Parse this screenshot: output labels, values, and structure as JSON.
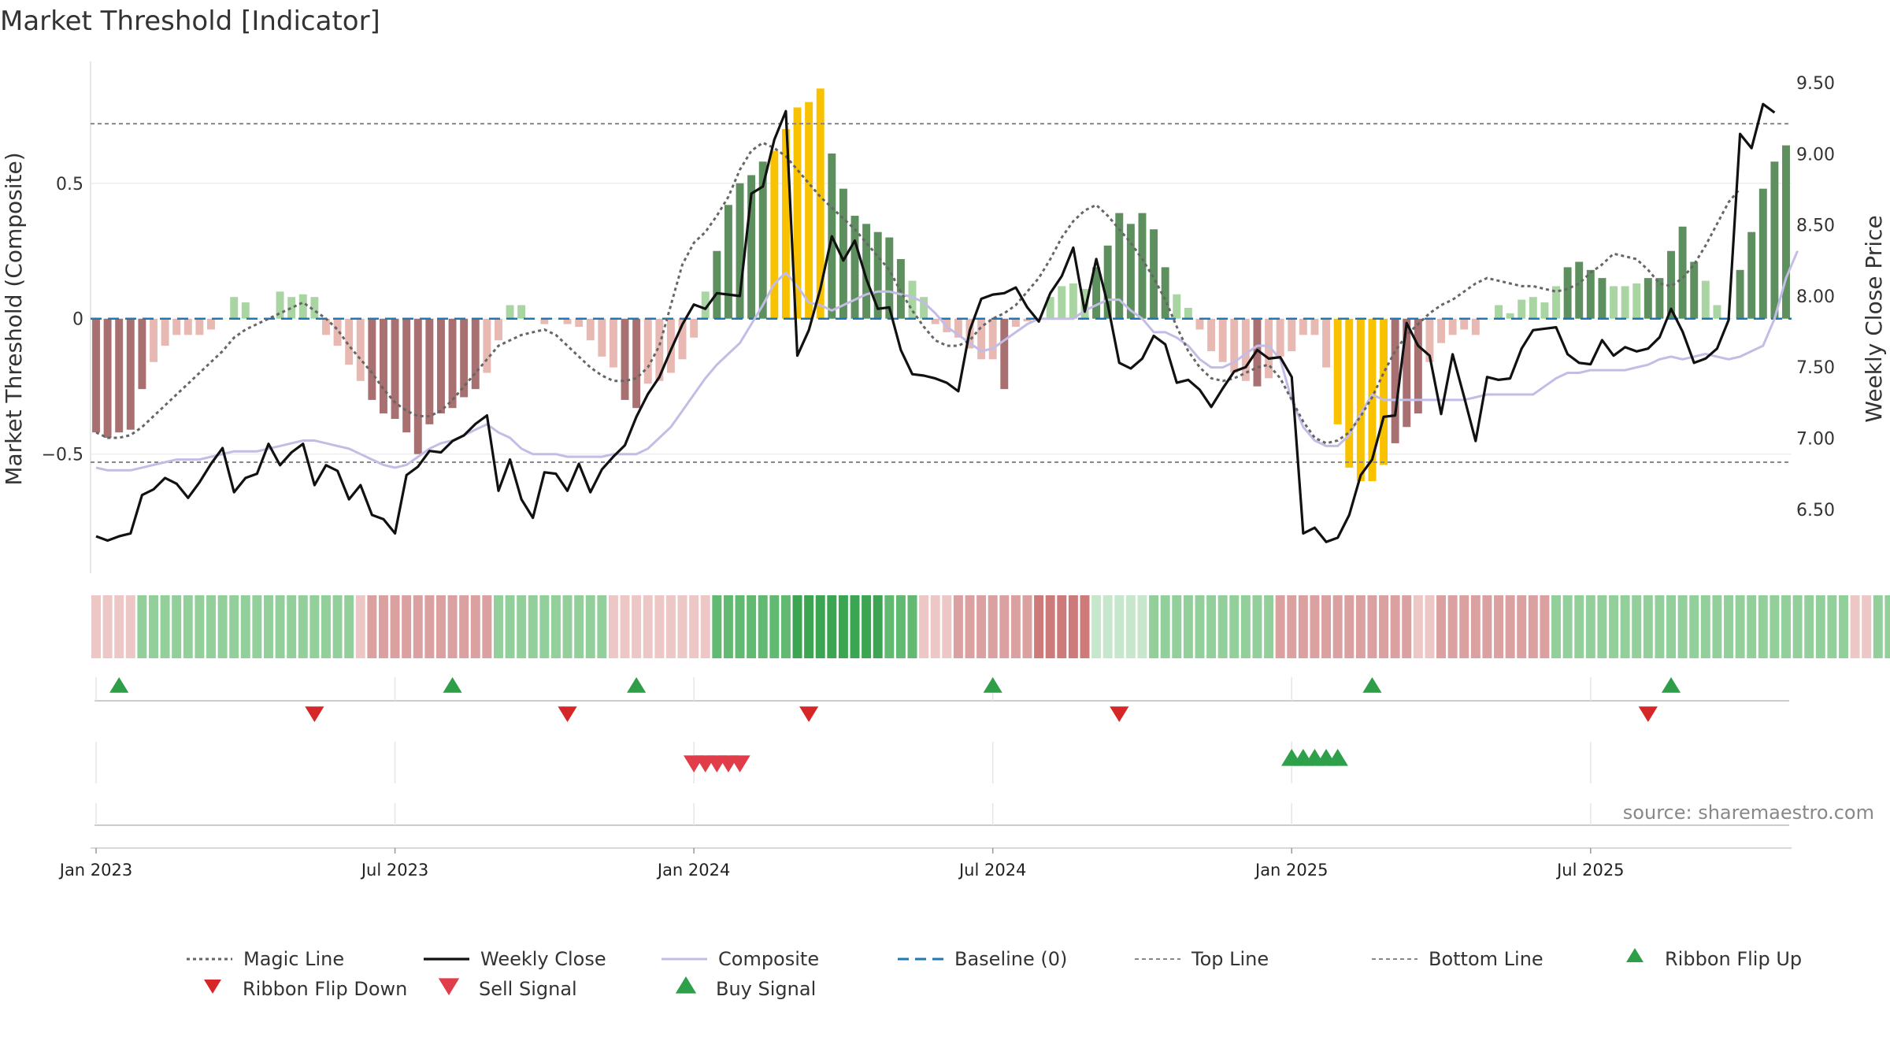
{
  "chart_data": {
    "type": "bar",
    "title": "Market Threshold [Indicator]",
    "ylabel": "Market Threshold (Composite)",
    "ylabel_right": "Weekly Close Price",
    "source": "source: sharemaestro.com",
    "ylim": [
      -0.94,
      0.95
    ],
    "ylim_right": [
      6.05,
      9.65
    ],
    "yticks": [
      {
        "v": 0.5,
        "label": "0.5"
      },
      {
        "v": 0,
        "label": "0"
      },
      {
        "v": -0.5,
        "label": "−0.5"
      }
    ],
    "yticks_right": [
      {
        "v": 9.5,
        "label": "9.50"
      },
      {
        "v": 9.0,
        "label": "9.00"
      },
      {
        "v": 8.5,
        "label": "8.50"
      },
      {
        "v": 8.0,
        "label": "8.00"
      },
      {
        "v": 7.5,
        "label": "7.50"
      },
      {
        "v": 7.0,
        "label": "7.00"
      },
      {
        "v": 6.5,
        "label": "6.50"
      }
    ],
    "xticks": [
      {
        "week": 1,
        "label": "Jan 2023"
      },
      {
        "week": 27,
        "label": "Jul 2023"
      },
      {
        "week": 53,
        "label": "Jan 2024"
      },
      {
        "week": 79,
        "label": "Jul 2024"
      },
      {
        "week": 105,
        "label": "Jan 2025"
      },
      {
        "week": 131,
        "label": "Jul 2025"
      }
    ],
    "top_line": 0.72,
    "bottom_line": -0.53,
    "baseline": 0,
    "composite": [
      -0.55,
      -0.56,
      -0.56,
      -0.56,
      -0.55,
      -0.54,
      -0.53,
      -0.52,
      -0.52,
      -0.52,
      -0.51,
      -0.5,
      -0.49,
      -0.49,
      -0.49,
      -0.48,
      -0.47,
      -0.46,
      -0.45,
      -0.45,
      -0.46,
      -0.47,
      -0.48,
      -0.5,
      -0.52,
      -0.54,
      -0.55,
      -0.54,
      -0.51,
      -0.48,
      -0.46,
      -0.45,
      -0.43,
      -0.41,
      -0.39,
      -0.42,
      -0.44,
      -0.48,
      -0.5,
      -0.5,
      -0.5,
      -0.51,
      -0.51,
      -0.51,
      -0.51,
      -0.5,
      -0.5,
      -0.5,
      -0.48,
      -0.44,
      -0.4,
      -0.34,
      -0.28,
      -0.22,
      -0.17,
      -0.13,
      -0.09,
      -0.02,
      0.05,
      0.13,
      0.17,
      0.12,
      0.06,
      0.05,
      0.03,
      0.05,
      0.07,
      0.09,
      0.1,
      0.1,
      0.09,
      0.08,
      0.06,
      0.02,
      -0.03,
      -0.06,
      -0.09,
      -0.12,
      -0.11,
      -0.08,
      -0.05,
      -0.02,
      0.0,
      0.0,
      0.0,
      0.0,
      0.03,
      0.05,
      0.07,
      0.07,
      0.03,
      0.0,
      -0.05,
      -0.05,
      -0.07,
      -0.1,
      -0.15,
      -0.18,
      -0.18,
      -0.16,
      -0.13,
      -0.1,
      -0.1,
      -0.15,
      -0.3,
      -0.4,
      -0.45,
      -0.47,
      -0.47,
      -0.43,
      -0.35,
      -0.28,
      -0.3,
      -0.3,
      -0.3,
      -0.3,
      -0.3,
      -0.3,
      -0.3,
      -0.3,
      -0.29,
      -0.28,
      -0.28,
      -0.28,
      -0.28,
      -0.28,
      -0.25,
      -0.22,
      -0.2,
      -0.2,
      -0.19,
      -0.19,
      -0.19,
      -0.19,
      -0.18,
      -0.17,
      -0.15,
      -0.14,
      -0.15,
      -0.14,
      -0.13,
      -0.14,
      -0.15,
      -0.14,
      -0.12,
      -0.1,
      0.0,
      0.15,
      0.25
    ],
    "magic_line": [
      -0.42,
      -0.44,
      -0.44,
      -0.43,
      -0.4,
      -0.36,
      -0.32,
      -0.28,
      -0.24,
      -0.2,
      -0.16,
      -0.12,
      -0.07,
      -0.04,
      -0.02,
      0.0,
      0.02,
      0.04,
      0.06,
      0.03,
      0.0,
      -0.04,
      -0.1,
      -0.15,
      -0.2,
      -0.26,
      -0.31,
      -0.34,
      -0.36,
      -0.36,
      -0.34,
      -0.3,
      -0.25,
      -0.2,
      -0.15,
      -0.1,
      -0.08,
      -0.06,
      -0.05,
      -0.04,
      -0.06,
      -0.1,
      -0.14,
      -0.18,
      -0.21,
      -0.23,
      -0.23,
      -0.22,
      -0.18,
      -0.1,
      0.05,
      0.2,
      0.28,
      0.32,
      0.38,
      0.45,
      0.55,
      0.62,
      0.65,
      0.63,
      0.6,
      0.55,
      0.5,
      0.45,
      0.41,
      0.37,
      0.33,
      0.28,
      0.23,
      0.18,
      0.1,
      0.03,
      -0.03,
      -0.08,
      -0.1,
      -0.1,
      -0.08,
      -0.03,
      0.0,
      0.02,
      0.05,
      0.1,
      0.15,
      0.22,
      0.3,
      0.36,
      0.4,
      0.42,
      0.38,
      0.33,
      0.28,
      0.22,
      0.15,
      0.07,
      -0.03,
      -0.12,
      -0.18,
      -0.22,
      -0.23,
      -0.22,
      -0.2,
      -0.18,
      -0.17,
      -0.22,
      -0.3,
      -0.38,
      -0.44,
      -0.46,
      -0.45,
      -0.42,
      -0.36,
      -0.29,
      -0.2,
      -0.12,
      -0.06,
      -0.02,
      0.02,
      0.05,
      0.07,
      0.1,
      0.13,
      0.15,
      0.14,
      0.13,
      0.12,
      0.12,
      0.11,
      0.1,
      0.11,
      0.13,
      0.17,
      0.2,
      0.24,
      0.23,
      0.22,
      0.18,
      0.13,
      0.12,
      0.15,
      0.2,
      0.27,
      0.35,
      0.43,
      0.48
    ],
    "weekly_close": [
      6.31,
      6.28,
      6.31,
      6.33,
      6.6,
      6.64,
      6.72,
      6.68,
      6.58,
      6.69,
      6.82,
      6.93,
      6.62,
      6.72,
      6.75,
      6.96,
      6.81,
      6.9,
      6.96,
      6.67,
      6.81,
      6.77,
      6.57,
      6.67,
      6.46,
      6.43,
      6.33,
      6.74,
      6.8,
      6.91,
      6.9,
      6.98,
      7.02,
      7.1,
      7.16,
      6.63,
      6.85,
      6.57,
      6.44,
      6.76,
      6.75,
      6.63,
      6.82,
      6.62,
      6.78,
      6.87,
      6.95,
      7.15,
      7.31,
      7.43,
      7.62,
      7.8,
      7.94,
      7.91,
      8.02,
      8.01,
      8.0,
      8.72,
      8.77,
      9.1,
      9.3,
      7.58,
      7.76,
      8.05,
      8.42,
      8.25,
      8.39,
      8.12,
      7.91,
      7.92,
      7.62,
      7.45,
      7.44,
      7.42,
      7.39,
      7.33,
      7.76,
      7.98,
      8.01,
      8.02,
      8.06,
      7.92,
      7.82,
      8.02,
      8.14,
      8.34,
      7.89,
      8.26,
      7.94,
      7.53,
      7.49,
      7.56,
      7.72,
      7.66,
      7.39,
      7.41,
      7.34,
      7.22,
      7.35,
      7.47,
      7.5,
      7.62,
      7.56,
      7.57,
      7.43,
      6.33,
      6.37,
      6.27,
      6.3,
      6.46,
      6.74,
      6.85,
      7.15,
      7.16,
      7.81,
      7.65,
      7.58,
      7.17,
      7.59,
      7.29,
      6.98,
      7.43,
      7.41,
      7.42,
      7.63,
      7.76,
      7.77,
      7.78,
      7.59,
      7.53,
      7.52,
      7.69,
      7.58,
      7.64,
      7.61,
      7.63,
      7.71,
      7.91,
      7.75,
      7.53,
      7.56,
      7.63,
      7.83,
      9.14,
      9.04,
      9.35,
      9.29
    ],
    "histogram": [
      -0.42,
      -0.44,
      -0.42,
      -0.41,
      -0.26,
      -0.16,
      -0.1,
      -0.06,
      -0.06,
      -0.06,
      -0.04,
      0.0,
      0.08,
      0.06,
      0.0,
      0.0,
      0.1,
      0.08,
      0.09,
      0.08,
      -0.06,
      -0.1,
      -0.17,
      -0.23,
      -0.3,
      -0.35,
      -0.37,
      -0.42,
      -0.5,
      -0.39,
      -0.35,
      -0.33,
      -0.29,
      -0.26,
      -0.2,
      -0.08,
      0.05,
      0.05,
      0.0,
      -0.02,
      0.0,
      -0.02,
      -0.03,
      -0.08,
      -0.14,
      -0.18,
      -0.3,
      -0.33,
      -0.24,
      -0.23,
      -0.2,
      -0.15,
      -0.07,
      0.1,
      0.25,
      0.42,
      0.5,
      0.53,
      0.58,
      0.62,
      0.7,
      0.78,
      0.8,
      0.85,
      0.61,
      0.48,
      0.38,
      0.35,
      0.32,
      0.3,
      0.22,
      0.14,
      0.08,
      -0.02,
      -0.05,
      -0.07,
      -0.11,
      -0.15,
      -0.15,
      -0.26,
      -0.03,
      -0.01,
      0.0,
      0.08,
      0.12,
      0.13,
      0.11,
      0.19,
      0.27,
      0.39,
      0.35,
      0.39,
      0.33,
      0.19,
      0.09,
      0.04,
      -0.04,
      -0.12,
      -0.16,
      -0.2,
      -0.23,
      -0.25,
      -0.22,
      -0.14,
      -0.12,
      -0.06,
      -0.06,
      -0.18,
      -0.39,
      -0.55,
      -0.6,
      -0.6,
      -0.54,
      -0.46,
      -0.4,
      -0.35,
      -0.16,
      -0.09,
      -0.06,
      -0.04,
      -0.06,
      0.0,
      0.05,
      0.02,
      0.07,
      0.08,
      0.06,
      0.12,
      0.19,
      0.21,
      0.18,
      0.15,
      0.12,
      0.12,
      0.13,
      0.15,
      0.15,
      0.25,
      0.34,
      0.21,
      0.14,
      0.05,
      0.0,
      0.18,
      0.32,
      0.48,
      0.58,
      0.64
    ],
    "histogram_extreme_weeks": [
      60,
      61,
      62,
      63,
      64,
      109,
      110,
      111,
      112,
      113
    ],
    "ribbon": [
      -1,
      -1,
      -1,
      -1,
      2,
      2,
      2,
      2,
      2,
      2,
      2,
      2,
      2,
      2,
      2,
      2,
      2,
      2,
      2,
      2,
      2,
      2,
      2,
      -1,
      -2,
      -2,
      -2,
      -2,
      -2,
      -2,
      -2,
      -2,
      -2,
      -2,
      -2,
      2,
      2,
      2,
      2,
      2,
      2,
      2,
      2,
      2,
      2,
      -1,
      -1,
      -1,
      -1,
      -1,
      -1,
      -1,
      -1,
      -1,
      3,
      3,
      3,
      3,
      3,
      3,
      3,
      4,
      4,
      4,
      4,
      4,
      4,
      4,
      4,
      3,
      3,
      3,
      -1,
      -1,
      -1,
      -2,
      -2,
      -2,
      -2,
      -2,
      -2,
      -2,
      -3,
      -3,
      -3,
      -3,
      -3,
      1,
      1,
      1,
      1,
      1,
      2,
      2,
      2,
      2,
      2,
      2,
      2,
      2,
      2,
      2,
      2,
      -2,
      -2,
      -2,
      -2,
      -2,
      -2,
      -2,
      -2,
      -2,
      -2,
      -2,
      -2,
      -1,
      -1,
      -2,
      -2,
      -2,
      -2,
      -2,
      -2,
      -2,
      -2,
      -2,
      -2,
      2,
      2,
      2,
      2,
      2,
      2,
      2,
      2,
      2,
      2,
      2,
      2,
      2,
      2,
      2,
      2,
      2,
      2,
      2,
      2,
      2,
      2,
      2,
      2,
      2,
      2,
      -1,
      -1,
      2,
      2,
      2
    ],
    "ribbon_flip_up_weeks": [
      3,
      32,
      48,
      79,
      112,
      138
    ],
    "ribbon_flip_down_weeks": [
      20,
      42,
      63,
      90,
      136
    ],
    "sell_signal_weeks": [
      53,
      54,
      55,
      56,
      57
    ],
    "buy_signal_weeks": [
      105,
      106,
      107,
      108,
      109
    ],
    "legend": [
      {
        "key": "magic",
        "label": "Magic Line"
      },
      {
        "key": "close",
        "label": "Weekly Close"
      },
      {
        "key": "composite",
        "label": "Composite"
      },
      {
        "key": "baseline",
        "label": "Baseline (0)"
      },
      {
        "key": "top",
        "label": "Top Line"
      },
      {
        "key": "bottom",
        "label": "Bottom Line"
      },
      {
        "key": "flipup",
        "label": "Ribbon Flip Up"
      },
      {
        "key": "flipdown",
        "label": "Ribbon Flip Down"
      },
      {
        "key": "sell",
        "label": "Sell Signal"
      },
      {
        "key": "buy",
        "label": "Buy Signal"
      }
    ],
    "colors": {
      "pos_strong": "#5e8f5e",
      "pos_weak": "#a8d5a2",
      "neg_strong": "#a87070",
      "neg_weak": "#e8b9b3",
      "extreme": "#f9c200",
      "close": "#111111",
      "composite": "#c3bde6",
      "magic": "#666666",
      "baseline": "#1f77b4",
      "threshold": "#888888",
      "flip_up": "#2e9e48",
      "flip_down": "#d62728",
      "sell": "#e03c4a",
      "buy": "#2ea04a"
    }
  }
}
